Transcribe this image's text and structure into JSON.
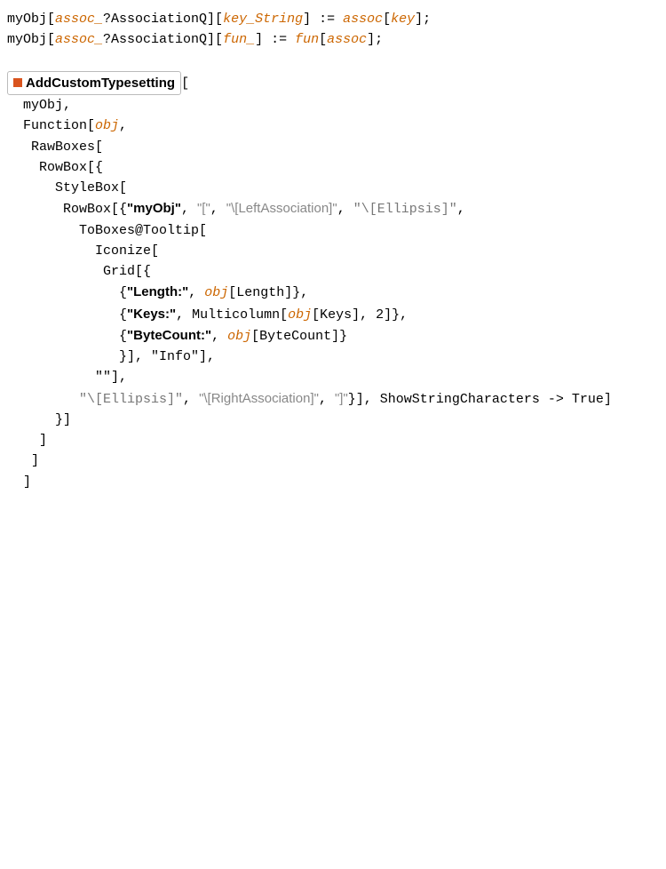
{
  "colors": {
    "text": "#000000",
    "gray": "#777777",
    "orange": "#cc6600",
    "border": "#bbbbbb",
    "rf_square": "#d9541e",
    "bracket_gray": "#888888",
    "background": "#ffffff"
  },
  "rf": {
    "name": "AddCustomTypesetting"
  },
  "l1": {
    "pre": "myObj[",
    "a": "assoc_",
    "post1": "?AssociationQ][",
    "b": "key_String",
    "post2": "] := ",
    "c": "assoc",
    "lb": "[",
    "d": "key",
    "rb": "];"
  },
  "l2": {
    "pre": "myObj[",
    "a": "assoc_",
    "post1": "?AssociationQ][",
    "b": "fun_",
    "post2": "] := ",
    "c": "fun",
    "lb": "[",
    "d": "assoc",
    "rb": "];"
  },
  "l4": {
    "post": "["
  },
  "l5": {
    "txt": "  myObj,"
  },
  "l6": {
    "pre": "  Function[",
    "a": "obj",
    "post": ","
  },
  "l7": {
    "txt": "   RawBoxes["
  },
  "l8": {
    "txt": "    RowBox[{"
  },
  "l9": {
    "txt": "      StyleBox["
  },
  "l10": {
    "pre": "       RowBox[{",
    "a": "\"myObj\"",
    "mid1": ", ",
    "b": "\"[\"",
    "mid2": ", ",
    "c": "\"\\[LeftAssociation]\"",
    "mid3": ", ",
    "d": "\"\\[Ellipsis]\"",
    "post": ","
  },
  "l11": {
    "txt": "         ToBoxes@Tooltip["
  },
  "l12": {
    "txt": "           Iconize["
  },
  "l13": {
    "txt": "            Grid[{"
  },
  "l14": {
    "pre": "              {",
    "a": "\"Length:\"",
    "mid": ", ",
    "b": "obj",
    "post": "[Length]},"
  },
  "l15": {
    "pre": "              {",
    "a": "\"Keys:\"",
    "mid": ", Multicolumn[",
    "b": "obj",
    "post": "[Keys], 2]},"
  },
  "l16": {
    "pre": "              {",
    "a": "\"ByteCount:\"",
    "mid": ", ",
    "b": "obj",
    "post": "[ByteCount]}"
  },
  "l17": {
    "txt": "              }], \"Info\"],"
  },
  "l18": {
    "txt": "           \"\"],"
  },
  "l19": {
    "pre": "         ",
    "a": "\"\\[Ellipsis]\"",
    "mid1": ", ",
    "b": "\"\\[RightAssociation]\"",
    "mid2": ", ",
    "c": "\"]\"",
    "post": "}], ShowStringCharacters -> True]"
  },
  "l20": {
    "txt": "      }]"
  },
  "l21": {
    "txt": "    ]"
  },
  "l22": {
    "txt": "   ]"
  },
  "l23": {
    "txt": "  ]"
  }
}
